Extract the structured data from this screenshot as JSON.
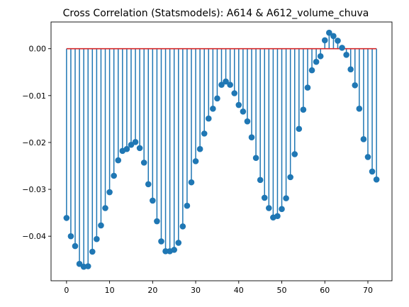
{
  "chart_data": {
    "type": "stem",
    "title": "Cross Correlation (Statsmodels): A614 & A612_volume_chuva",
    "xlabel": "",
    "ylabel": "",
    "xlim": [
      -3.6,
      75.6
    ],
    "ylim": [
      -0.0495,
      0.0057
    ],
    "x_ticks": [
      0,
      10,
      20,
      30,
      40,
      50,
      60,
      70
    ],
    "y_ticks": [
      -0.04,
      -0.03,
      -0.02,
      -0.01,
      0.0
    ],
    "y_tick_labels": [
      "−0.04",
      "−0.03",
      "−0.02",
      "−0.01",
      "0.00"
    ],
    "baseline": 0,
    "colors": {
      "stem": "#1f77b4",
      "marker": "#1f77b4",
      "baseline": "#d62728"
    },
    "grid": false,
    "x": [
      0,
      1,
      2,
      3,
      4,
      5,
      6,
      7,
      8,
      9,
      10,
      11,
      12,
      13,
      14,
      15,
      16,
      17,
      18,
      19,
      20,
      21,
      22,
      23,
      24,
      25,
      26,
      27,
      28,
      29,
      30,
      31,
      32,
      33,
      34,
      35,
      36,
      37,
      38,
      39,
      40,
      41,
      42,
      43,
      44,
      45,
      46,
      47,
      48,
      49,
      50,
      51,
      52,
      53,
      54,
      55,
      56,
      57,
      58,
      59,
      60,
      61,
      62,
      63,
      64,
      65,
      66,
      67,
      68,
      69,
      70,
      71,
      72
    ],
    "values": [
      -0.0361,
      -0.04,
      -0.0421,
      -0.0459,
      -0.0465,
      -0.0464,
      -0.0433,
      -0.0406,
      -0.0377,
      -0.034,
      -0.0306,
      -0.0271,
      -0.0238,
      -0.0218,
      -0.0214,
      -0.0205,
      -0.0199,
      -0.0212,
      -0.0243,
      -0.0289,
      -0.0324,
      -0.0368,
      -0.0411,
      -0.0432,
      -0.0432,
      -0.0429,
      -0.0414,
      -0.0379,
      -0.0335,
      -0.0285,
      -0.024,
      -0.0214,
      -0.0181,
      -0.0149,
      -0.0128,
      -0.0106,
      -0.0077,
      -0.007,
      -0.0077,
      -0.0095,
      -0.012,
      -0.0134,
      -0.0155,
      -0.0189,
      -0.0233,
      -0.028,
      -0.0318,
      -0.034,
      -0.036,
      -0.0357,
      -0.0342,
      -0.0319,
      -0.0274,
      -0.0225,
      -0.0171,
      -0.013,
      -0.0083,
      -0.0046,
      -0.0028,
      -0.0016,
      0.0018,
      0.0034,
      0.0027,
      0.0017,
      0.0002,
      -0.0013,
      -0.0044,
      -0.0078,
      -0.0128,
      -0.0193,
      -0.0231,
      -0.0262,
      -0.0279
    ]
  }
}
